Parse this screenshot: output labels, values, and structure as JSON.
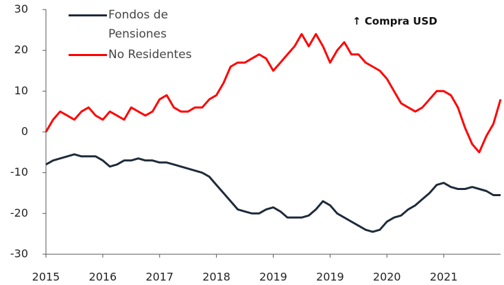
{
  "chart_data": {
    "type": "line",
    "annotation": "↑ Compra USD",
    "categories": [
      "2015",
      null,
      null,
      null,
      null,
      null,
      null,
      null,
      "2016",
      null,
      null,
      null,
      null,
      null,
      null,
      null,
      "2017",
      null,
      null,
      null,
      null,
      null,
      null,
      null,
      "2018",
      null,
      null,
      null,
      null,
      null,
      null,
      null,
      "2019",
      null,
      null,
      null,
      null,
      null,
      null,
      null,
      "2019",
      null,
      null,
      null,
      null,
      null,
      null,
      null,
      "2020",
      null,
      null,
      null,
      null,
      null,
      null,
      null,
      "2021",
      null,
      null,
      null,
      null,
      null,
      null,
      null,
      null
    ],
    "series": [
      {
        "name": "Fondos de Pensiones",
        "color": "#1f2a3a",
        "values": [
          -8,
          -7,
          -6.5,
          -6,
          -5.5,
          -6,
          -6,
          -6,
          -7,
          -8.5,
          -8,
          -7,
          -7,
          -6.5,
          -7,
          -7,
          -7.5,
          -7.5,
          -8,
          -8.5,
          -9,
          -9.5,
          -10,
          -11,
          -13,
          -15,
          -17,
          -19,
          -19.5,
          -20,
          -20,
          -19,
          -18.5,
          -19.5,
          -21,
          -21,
          -21,
          -20.5,
          -19,
          -17,
          -18,
          -20,
          -21,
          -22,
          -23,
          -24,
          -24.5,
          -24,
          -22,
          -21,
          -20.5,
          -19,
          -18,
          -16.5,
          -15,
          -13,
          -12.5,
          -13.5,
          -14,
          -14,
          -13.5,
          -14,
          -14.5,
          -15.5,
          -15.5
        ]
      },
      {
        "name": "No Residentes",
        "color": "#ff0000",
        "values": [
          0,
          3,
          5,
          4,
          3,
          5,
          6,
          4,
          3,
          5,
          4,
          3,
          6,
          5,
          4,
          5,
          8,
          9,
          6,
          5,
          5,
          6,
          6,
          8,
          9,
          12,
          16,
          17,
          17,
          18,
          19,
          18,
          15,
          17,
          19,
          21,
          24,
          21,
          24,
          21,
          17,
          20,
          22,
          19,
          19,
          17,
          16,
          15,
          13,
          10,
          7,
          6,
          5,
          6,
          8,
          10,
          10,
          9,
          6,
          1,
          -3,
          -5,
          -1,
          2,
          8
        ]
      }
    ],
    "ylim": [
      -30,
      30
    ],
    "yticks": [
      -30,
      -20,
      -10,
      0,
      10,
      20,
      30
    ],
    "legend": "upper left"
  }
}
